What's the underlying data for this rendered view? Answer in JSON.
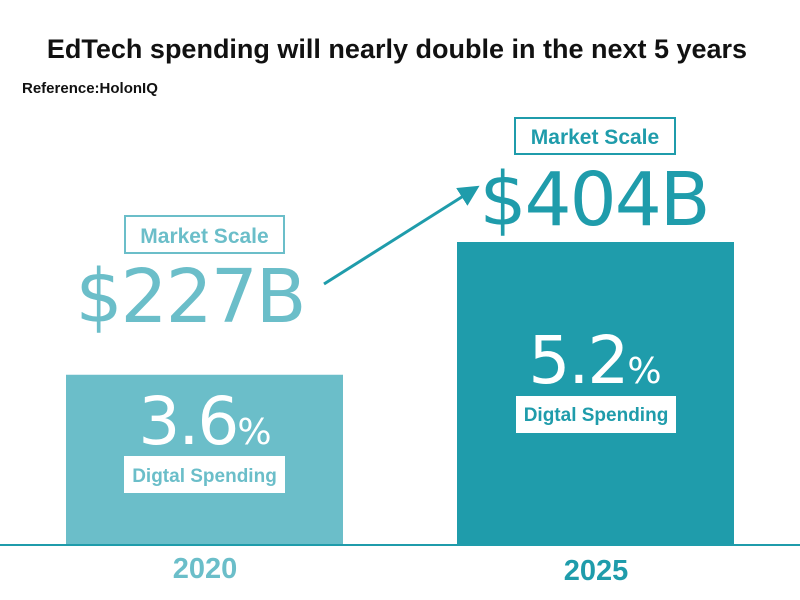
{
  "chart_data": {
    "type": "bar",
    "title": "EdTech spending will nearly double in the next 5 years",
    "subtitle": "Reference:HolonIQ",
    "categories": [
      "2020",
      "2025"
    ],
    "series": [
      {
        "values": [
          227,
          404
        ],
        "value_labels": [
          "$227B",
          "$404B"
        ],
        "badge_label": "Market Scale"
      },
      {
        "values": [
          3.6,
          5.2
        ],
        "badge_label": "Digtal Spending"
      }
    ],
    "percent_symbol": "%",
    "ylim": [
      0,
      404
    ],
    "grid": false,
    "legend": "none",
    "colors": [
      "#6bbec9",
      "#1f9cab"
    ]
  }
}
